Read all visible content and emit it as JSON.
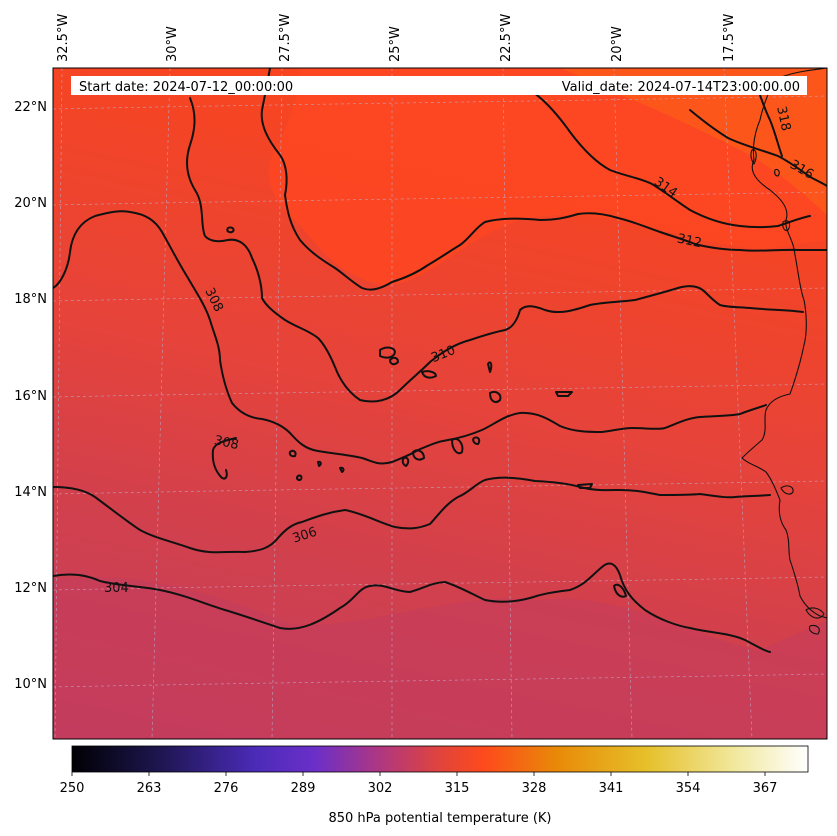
{
  "map": {
    "variable": "850 hPa potential temperature (K)",
    "info": {
      "start_date": "Start date: 2024-07-12_00:00:00",
      "valid_date": "Valid_date: 2024-07-14T23:00:00.00"
    },
    "longitude_labels": [
      "32.5°W",
      "30°W",
      "27.5°W",
      "25°W",
      "22.5°W",
      "20°W",
      "17.5°W"
    ],
    "latitude_labels": [
      "22°N",
      "20°N",
      "18°N",
      "16°N",
      "14°N",
      "12°N",
      "10°N"
    ],
    "contour_levels": [
      "304",
      "306",
      "308",
      "310",
      "312",
      "314",
      "316",
      "318"
    ],
    "colorbar": {
      "label": "850 hPa potential temperature (K)",
      "ticks": [
        "250",
        "263",
        "276",
        "289",
        "302",
        "315",
        "328",
        "341",
        "354",
        "367"
      ],
      "colormap": [
        "#000004",
        "#2c1c6e",
        "#5a2bd0",
        "#9b3ab0",
        "#d0404f",
        "#fe3f1f",
        "#e98a07",
        "#e7c62a",
        "#f0e9a0",
        "#ffffff"
      ]
    },
    "fill_colors": {
      "cool": "#c63e58",
      "mid": "#e0433f",
      "warm": "#fe4721",
      "hot": "#fb5a1c"
    }
  }
}
